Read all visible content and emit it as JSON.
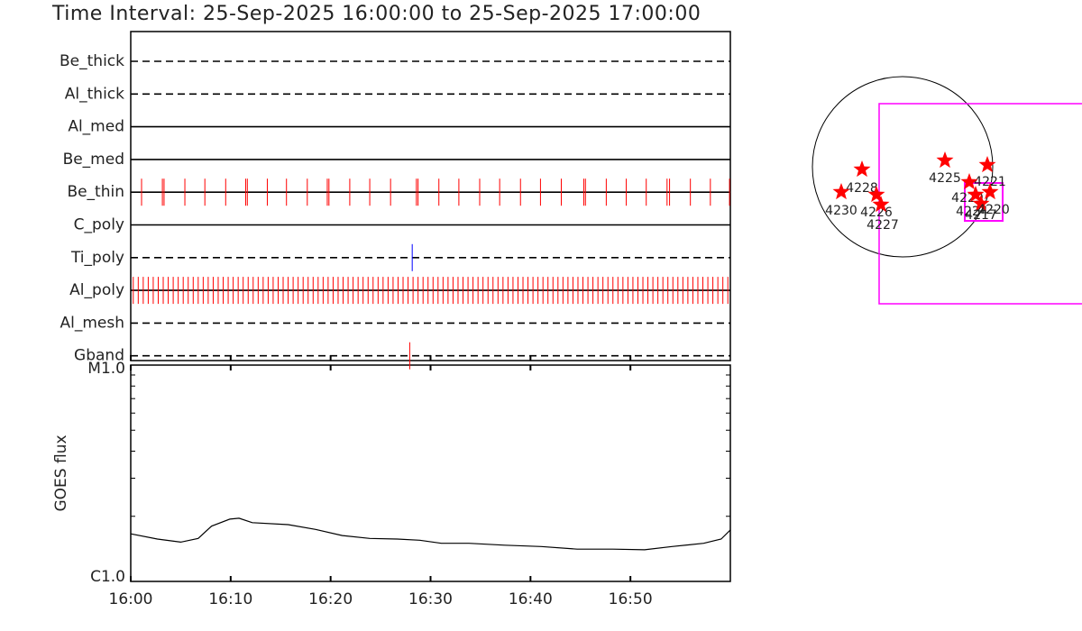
{
  "title": "Time Interval: 25-Sep-2025 16:00:00 to 25-Sep-2025 17:00:00",
  "chart_data": [
    {
      "type": "timeline",
      "xlim": [
        "16:00:00",
        "17:00:00"
      ],
      "xticks": [
        "16:00",
        "16:10",
        "16:20",
        "16:30",
        "16:40",
        "16:50"
      ],
      "rows": [
        {
          "name": "Be_thick",
          "style": "dashed",
          "color": "#ff0000",
          "events": []
        },
        {
          "name": "Al_thick",
          "style": "dashed",
          "color": "#ff0000",
          "events": []
        },
        {
          "name": "Al_med",
          "style": "solid",
          "color": "#ff0000",
          "events": []
        },
        {
          "name": "Be_med",
          "style": "solid",
          "color": "#ff0000",
          "events": []
        },
        {
          "name": "Be_thin",
          "style": "solid",
          "color": "#ff0000",
          "events": [
            "16:01:05",
            "16:03:10",
            "16:03:20",
            "16:05:25",
            "16:07:25",
            "16:09:30",
            "16:11:30",
            "16:11:40",
            "16:13:40",
            "16:15:35",
            "16:17:40",
            "16:19:40",
            "16:19:50",
            "16:21:55",
            "16:23:55",
            "16:26:00",
            "16:28:35",
            "16:28:45",
            "16:30:50",
            "16:32:50",
            "16:34:55",
            "16:36:55",
            "16:39:00",
            "16:41:00",
            "16:43:05",
            "16:45:20",
            "16:45:30",
            "16:47:35",
            "16:49:35",
            "16:51:35",
            "16:53:40",
            "16:53:55",
            "16:56:00",
            "16:58:00",
            "16:59:55"
          ]
        },
        {
          "name": "C_poly",
          "style": "solid",
          "color": "#ff0000",
          "events": []
        },
        {
          "name": "Ti_poly",
          "style": "dashed",
          "color": "#0000ff",
          "events": [
            "16:28:10"
          ]
        },
        {
          "name": "Al_poly",
          "style": "solid",
          "color": "#ff0000",
          "events": [
            "16:00:15",
            "16:00:45",
            "16:01:15",
            "16:01:45",
            "16:02:15",
            "16:02:45",
            "16:03:15",
            "16:03:45",
            "16:04:15",
            "16:04:45",
            "16:05:15",
            "16:05:45",
            "16:06:15",
            "16:06:45",
            "16:07:15",
            "16:07:45",
            "16:08:15",
            "16:08:45",
            "16:09:15",
            "16:09:45",
            "16:10:15",
            "16:10:45",
            "16:11:15",
            "16:11:45",
            "16:12:15",
            "16:12:45",
            "16:13:15",
            "16:13:45",
            "16:14:15",
            "16:14:45",
            "16:15:15",
            "16:15:45",
            "16:16:15",
            "16:16:45",
            "16:17:15",
            "16:17:45",
            "16:18:15",
            "16:18:45",
            "16:19:15",
            "16:19:45",
            "16:20:15",
            "16:20:45",
            "16:21:15",
            "16:21:45",
            "16:22:15",
            "16:22:45",
            "16:23:15",
            "16:23:45",
            "16:24:15",
            "16:24:45",
            "16:25:15",
            "16:25:45",
            "16:26:15",
            "16:26:45",
            "16:27:15",
            "16:27:45",
            "16:28:15",
            "16:28:45",
            "16:29:15",
            "16:29:45",
            "16:30:15",
            "16:30:45",
            "16:31:15",
            "16:31:45",
            "16:32:15",
            "16:32:45",
            "16:33:15",
            "16:33:45",
            "16:34:15",
            "16:34:45",
            "16:35:15",
            "16:35:45",
            "16:36:15",
            "16:36:45",
            "16:37:15",
            "16:37:45",
            "16:38:15",
            "16:38:45",
            "16:39:15",
            "16:39:45",
            "16:40:15",
            "16:40:45",
            "16:41:15",
            "16:41:45",
            "16:42:15",
            "16:42:45",
            "16:43:15",
            "16:43:45",
            "16:44:15",
            "16:44:45",
            "16:45:15",
            "16:45:45",
            "16:46:15",
            "16:46:45",
            "16:47:15",
            "16:47:45",
            "16:48:15",
            "16:48:45",
            "16:49:15",
            "16:49:45",
            "16:50:15",
            "16:50:45",
            "16:51:15",
            "16:51:45",
            "16:52:15",
            "16:52:45",
            "16:53:15",
            "16:53:45",
            "16:54:15",
            "16:54:45",
            "16:55:15",
            "16:55:45",
            "16:56:15",
            "16:56:45",
            "16:57:15",
            "16:57:45",
            "16:58:15",
            "16:58:45",
            "16:59:15",
            "16:59:45"
          ]
        },
        {
          "name": "Al_mesh",
          "style": "dashed",
          "color": "#ff0000",
          "events": []
        },
        {
          "name": "Gband",
          "style": "dashed",
          "color": "#ff0000",
          "events": [
            "16:27:55"
          ]
        }
      ]
    },
    {
      "type": "line",
      "ylabel": "GOES flux",
      "log_scale": true,
      "color": "#000000",
      "xlim": [
        "16:00:00",
        "17:00:00"
      ],
      "xticks": [
        "16:00",
        "16:10",
        "16:20",
        "16:30",
        "16:40",
        "16:50"
      ],
      "ylim": [
        1e-06,
        1e-05
      ],
      "yticks": [
        {
          "value": 1e-05,
          "label": "M1.0"
        },
        {
          "value": 1e-06,
          "label": "C1.0"
        }
      ],
      "yminor": [
        2e-06,
        3e-06,
        4e-06,
        5e-06,
        6e-06,
        7e-06,
        8e-06,
        9e-06
      ],
      "x": [
        "16:00:00",
        "16:02:40",
        "16:05:00",
        "16:06:45",
        "16:08:05",
        "16:09:55",
        "16:10:50",
        "16:12:10",
        "16:15:45",
        "16:18:30",
        "16:21:10",
        "16:23:55",
        "16:26:40",
        "16:28:55",
        "16:31:05",
        "16:33:50",
        "16:37:25",
        "16:41:05",
        "16:44:40",
        "16:48:15",
        "16:51:25",
        "16:54:10",
        "16:57:20",
        "16:59:05",
        "17:00:00"
      ],
      "values": [
        1.66e-06,
        1.57e-06,
        1.52e-06,
        1.58e-06,
        1.8e-06,
        1.94e-06,
        1.96e-06,
        1.87e-06,
        1.83e-06,
        1.74e-06,
        1.63e-06,
        1.58e-06,
        1.57e-06,
        1.55e-06,
        1.5e-06,
        1.5e-06,
        1.47e-06,
        1.45e-06,
        1.41e-06,
        1.41e-06,
        1.4e-06,
        1.45e-06,
        1.5e-06,
        1.57e-06,
        1.73e-06
      ]
    }
  ],
  "solar_map": {
    "limb_color": "#000000",
    "box_color": "#ff00ff",
    "star_color": "#ff0000",
    "regions": [
      {
        "label": "4228"
      },
      {
        "label": "4230"
      },
      {
        "label": "4226"
      },
      {
        "label": "4227"
      },
      {
        "label": "4225"
      },
      {
        "label": "4221"
      },
      {
        "label": "4229"
      },
      {
        "label": "4224"
      },
      {
        "label": "4217"
      },
      {
        "label": "4220"
      }
    ]
  }
}
